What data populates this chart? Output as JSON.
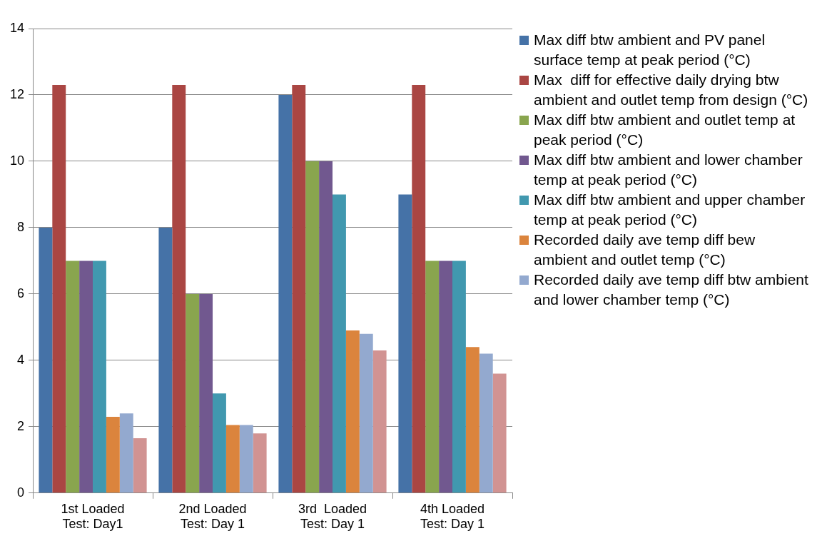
{
  "chart_data": {
    "type": "bar",
    "categories": [
      "1st Loaded Test: Day1",
      "2nd Loaded Test: Day 1",
      "3rd  Loaded Test: Day 1",
      "4th Loaded Test: Day 1"
    ],
    "series": [
      {
        "name": "Max diff btw ambient and PV panel surface temp at peak period (°C)",
        "color": "#4572a7",
        "values": [
          8,
          8,
          12,
          9
        ]
      },
      {
        "name": "Max  diff for effective daily drying btw ambient and outlet temp from design (°C)",
        "color": "#aa4643",
        "values": [
          12.3,
          12.3,
          12.3,
          12.3
        ]
      },
      {
        "name": "Max diff btw ambient and outlet temp at peak period (°C)",
        "color": "#89a54e",
        "values": [
          7,
          6,
          10,
          7
        ]
      },
      {
        "name": "Max diff btw ambient and lower chamber temp at peak period (°C)",
        "color": "#71588f",
        "values": [
          7,
          6,
          10,
          7
        ]
      },
      {
        "name": "Max diff btw ambient and upper chamber temp at peak period (°C)",
        "color": "#4198af",
        "values": [
          7,
          3,
          9,
          7
        ]
      },
      {
        "name": "Recorded daily ave temp diff bew ambient and outlet temp (°C)",
        "color": "#db843d",
        "values": [
          2.3,
          2.05,
          4.9,
          4.4
        ]
      },
      {
        "name": "Recorded daily ave temp diff btw ambient and lower chamber temp (°C)",
        "color": "#93a9cf",
        "values": [
          2.4,
          2.05,
          4.8,
          4.2
        ]
      },
      {
        "color": "#d19392",
        "values": [
          1.65,
          1.8,
          4.3,
          3.6
        ]
      }
    ],
    "ylim": [
      0,
      14
    ],
    "yticks": [
      0,
      2,
      4,
      6,
      8,
      10,
      12,
      14
    ],
    "grid": "y",
    "legend": "right"
  }
}
